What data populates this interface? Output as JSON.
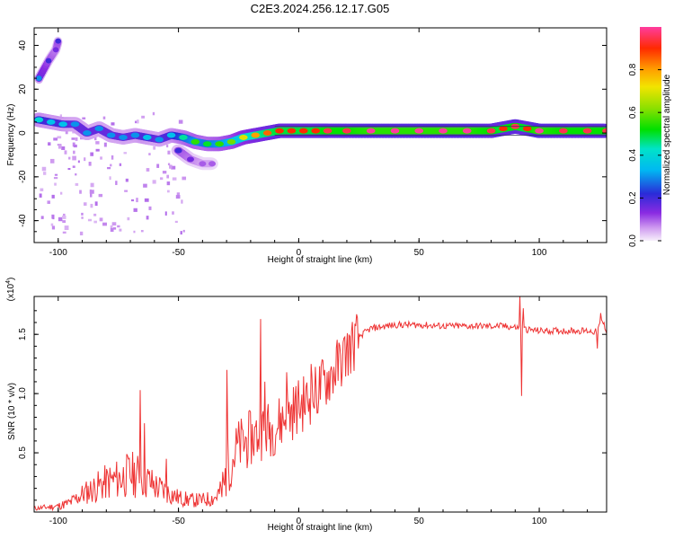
{
  "title": "C2E3.2024.256.12.17.G05",
  "chart_data": [
    {
      "type": "heatmap",
      "name": "spectrogram",
      "xlabel": "Height of straight line (km)",
      "ylabel": "Frequency (Hz)",
      "xlim": [
        -110,
        128
      ],
      "ylim": [
        -50,
        48
      ],
      "xticks": [
        -100,
        -50,
        0,
        50,
        100
      ],
      "xtick_labels": [
        "-100",
        "-50",
        "0",
        "50",
        "100"
      ],
      "yticks": [
        -40,
        -20,
        0,
        20,
        40
      ],
      "ytick_labels": [
        "-40",
        "-20",
        "0",
        "20",
        "40"
      ],
      "colorbar": {
        "label": "Normalized spectral amplitude",
        "range": [
          0,
          1
        ],
        "ticks": [
          0.0,
          0.2,
          0.4,
          0.6,
          0.8
        ],
        "tick_labels": [
          "0.0",
          "0.2",
          "0.4",
          "0.6",
          "0.8"
        ]
      },
      "ridge": {
        "description": "dominant frequency ridge vs height (km, Hz, amplitude)",
        "points": [
          [
            -108,
            6,
            0.4
          ],
          [
            -103,
            5,
            0.35
          ],
          [
            -98,
            4,
            0.35
          ],
          [
            -93,
            4,
            0.3
          ],
          [
            -88,
            0,
            0.3
          ],
          [
            -83,
            2,
            0.3
          ],
          [
            -78,
            -1,
            0.3
          ],
          [
            -73,
            -2,
            0.3
          ],
          [
            -68,
            -1,
            0.3
          ],
          [
            -63,
            -2,
            0.35
          ],
          [
            -58,
            -3,
            0.3
          ],
          [
            -53,
            -1,
            0.35
          ],
          [
            -48,
            -2,
            0.45
          ],
          [
            -43,
            -4,
            0.55
          ],
          [
            -38,
            -5,
            0.5
          ],
          [
            -33,
            -5,
            0.55
          ],
          [
            -28,
            -4,
            0.6
          ],
          [
            -23,
            -2,
            0.7
          ],
          [
            -18,
            -1,
            0.8
          ],
          [
            -13,
            0,
            0.85
          ],
          [
            -8,
            1,
            0.9
          ],
          [
            -3,
            1,
            0.9
          ],
          [
            2,
            1,
            0.9
          ],
          [
            7,
            1,
            0.9
          ],
          [
            12,
            1,
            0.95
          ],
          [
            20,
            1,
            0.95
          ],
          [
            30,
            1,
            1.0
          ],
          [
            40,
            1,
            1.0
          ],
          [
            50,
            1,
            1.0
          ],
          [
            60,
            1,
            1.0
          ],
          [
            70,
            1,
            1.0
          ],
          [
            80,
            1,
            0.95
          ],
          [
            85,
            2,
            0.9
          ],
          [
            90,
            3,
            0.95
          ],
          [
            95,
            2,
            0.9
          ],
          [
            100,
            1,
            1.0
          ],
          [
            110,
            1,
            0.95
          ],
          [
            120,
            1,
            0.95
          ],
          [
            128,
            1,
            0.95
          ]
        ],
        "side_branch": [
          [
            -50,
            -8,
            0.2
          ],
          [
            -45,
            -12,
            0.15
          ],
          [
            -40,
            -14,
            0.1
          ],
          [
            -36,
            -14,
            0.1
          ]
        ],
        "high_freq_arcs": [
          [
            -108,
            25,
            0.3
          ],
          [
            -104,
            33,
            0.2
          ],
          [
            -101,
            38,
            0.15
          ],
          [
            -100,
            42,
            0.2
          ]
        ]
      }
    },
    {
      "type": "line",
      "name": "snr",
      "xlabel": "Height of straight line (km)",
      "ylabel": "SNR (10 * v/v)",
      "yscale_label": "(x10",
      "yscale_exp": "4",
      "xlim": [
        -110,
        128
      ],
      "ylim": [
        0,
        1.82
      ],
      "xticks": [
        -100,
        -50,
        0,
        50,
        100
      ],
      "xtick_labels": [
        "-100",
        "-50",
        "0",
        "50",
        "100"
      ],
      "yticks": [
        0.5,
        1.0,
        1.5
      ],
      "ytick_labels": [
        "0.5",
        "1.0",
        "1.5"
      ],
      "color": "#ee3333",
      "x": [
        -110,
        -100,
        -95,
        -90,
        -85,
        -80,
        -75,
        -70,
        -65,
        -60,
        -55,
        -50,
        -45,
        -40,
        -35,
        -31,
        -30,
        -25,
        -20,
        -15,
        -10,
        -5,
        0,
        5,
        10,
        15,
        20,
        25,
        30,
        40,
        50,
        60,
        70,
        80,
        85,
        90,
        93,
        95,
        100,
        110,
        120,
        124,
        126,
        128
      ],
      "y": [
        0.03,
        0.05,
        0.08,
        0.15,
        0.2,
        0.25,
        0.28,
        0.32,
        0.3,
        0.22,
        0.17,
        0.12,
        0.1,
        0.1,
        0.12,
        0.2,
        0.38,
        0.55,
        0.62,
        0.68,
        0.72,
        0.8,
        0.9,
        0.95,
        1.08,
        1.2,
        1.35,
        1.48,
        1.55,
        1.58,
        1.58,
        1.57,
        1.57,
        1.57,
        1.57,
        1.56,
        1.55,
        1.54,
        1.53,
        1.53,
        1.53,
        1.52,
        1.62,
        1.53
      ],
      "spikes": [
        [
          -66,
          1.03
        ],
        [
          -64,
          0.75
        ],
        [
          -55,
          0.45
        ],
        [
          -30,
          1.2
        ],
        [
          -16,
          1.63
        ],
        [
          -14,
          1.1
        ],
        [
          -5,
          1.18
        ],
        [
          5,
          1.25
        ],
        [
          92,
          1.82
        ],
        [
          92.7,
          0.98
        ],
        [
          93.5,
          1.72
        ],
        [
          124,
          1.38
        ],
        [
          125.5,
          1.68
        ]
      ]
    }
  ]
}
